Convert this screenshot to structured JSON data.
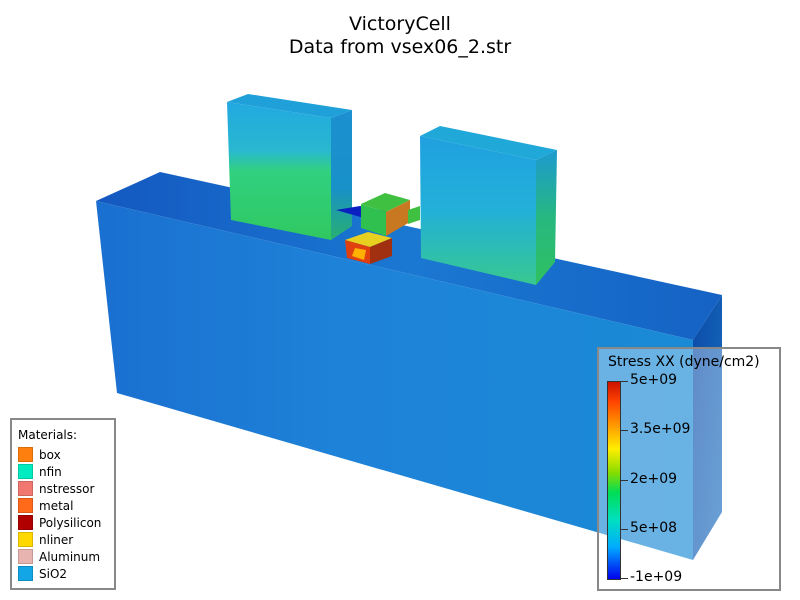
{
  "title": {
    "line1": "VictoryCell",
    "line2": "Data from vsex06_2.str"
  },
  "materials": {
    "heading": "Materials:",
    "items": [
      {
        "label": "box",
        "color": "#ff7f0e"
      },
      {
        "label": "nfin",
        "color": "#00ecc0"
      },
      {
        "label": "nstressor",
        "color": "#f07870"
      },
      {
        "label": "metal",
        "color": "#ff6a1a"
      },
      {
        "label": "Polysilicon",
        "color": "#b00000"
      },
      {
        "label": "nliner",
        "color": "#ffd800"
      },
      {
        "label": "Aluminum",
        "color": "#e8b4b0"
      },
      {
        "label": "SiO2",
        "color": "#12a6e6"
      }
    ]
  },
  "colorbar": {
    "title": "Stress XX (dyne/cm2)",
    "ticks": [
      {
        "label": "5e+09",
        "value": 5000000000
      },
      {
        "label": "3.5e+09",
        "value": 3500000000
      },
      {
        "label": "2e+09",
        "value": 2000000000
      },
      {
        "label": "5e+08",
        "value": 500000000
      },
      {
        "label": "-1e+09",
        "value": -1000000000
      }
    ],
    "min": -1000000000,
    "max": 5000000000
  }
}
